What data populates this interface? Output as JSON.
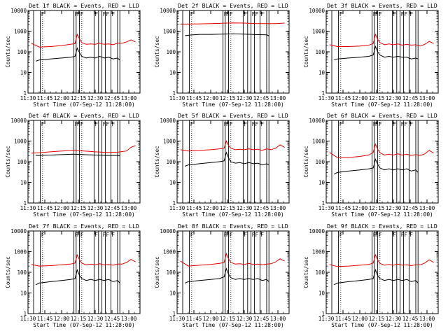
{
  "colors": {
    "events": "#000000",
    "lld": "#e60000",
    "background": "#ffffff"
  },
  "common": {
    "xlabel": "Start Time (07-Sep-12 11:28:00)",
    "ylabel": "Counts/sec",
    "x_tick_labels": [
      "11:30",
      "11:45",
      "12:00",
      "12:15",
      "12:30",
      "12:45",
      "13:00"
    ],
    "x_tick_minutes": [
      0,
      15,
      30,
      45,
      60,
      75,
      90
    ],
    "x_range_minutes": [
      0,
      100
    ],
    "y_tick_labels": [
      "1",
      "10",
      "100",
      "1000",
      "10000"
    ],
    "ylim": [
      1,
      10000
    ],
    "y_scale": "log",
    "marker_label": "F",
    "solid_markers_minutes": [
      5,
      11,
      41,
      43,
      46,
      59,
      63,
      66,
      69,
      74,
      80,
      82
    ],
    "f_markers_minutes": [
      11,
      41,
      43,
      46,
      59,
      66,
      69,
      74
    ],
    "dotted_markers_minutes": [
      13,
      48,
      80
    ]
  },
  "chart_data": [
    {
      "type": "line",
      "title": "Det 1f BLACK = Events, RED = LLD",
      "series": [
        {
          "color": "red",
          "x": [
            3,
            10,
            20,
            30,
            38,
            42,
            44,
            46,
            48,
            52,
            56,
            60,
            64,
            68,
            72,
            76,
            80,
            84,
            88,
            92,
            96
          ],
          "y": [
            260,
            170,
            180,
            200,
            230,
            250,
            700,
            420,
            280,
            230,
            240,
            230,
            260,
            230,
            240,
            220,
            260,
            260,
            300,
            380,
            300
          ]
        },
        {
          "color": "black",
          "x": [
            7,
            10,
            20,
            30,
            38,
            42,
            44,
            46,
            48,
            52,
            56,
            60,
            64,
            68,
            72,
            76,
            80,
            82
          ],
          "y": [
            35,
            40,
            45,
            50,
            55,
            60,
            150,
            90,
            60,
            50,
            55,
            50,
            60,
            50,
            55,
            45,
            50,
            40
          ]
        }
      ]
    },
    {
      "type": "line",
      "title": "Det 2f BLACK = Events, RED = LLD",
      "series": [
        {
          "color": "red",
          "x": [
            3,
            10,
            20,
            30,
            40,
            50,
            60,
            70,
            80,
            88,
            96
          ],
          "y": [
            2200,
            2200,
            2250,
            2300,
            2400,
            2500,
            2450,
            2350,
            2300,
            2300,
            2450
          ]
        },
        {
          "color": "black",
          "x": [
            7,
            12,
            20,
            30,
            40,
            50,
            60,
            70,
            80,
            82
          ],
          "y": [
            600,
            650,
            700,
            700,
            720,
            740,
            720,
            680,
            660,
            600
          ]
        }
      ]
    },
    {
      "type": "line",
      "title": "Det 3f BLACK = Events, RED = LLD",
      "series": [
        {
          "color": "red",
          "x": [
            3,
            10,
            20,
            30,
            38,
            42,
            44,
            46,
            48,
            52,
            56,
            60,
            64,
            68,
            72,
            76,
            80,
            84,
            88,
            92,
            96
          ],
          "y": [
            220,
            180,
            180,
            190,
            210,
            250,
            700,
            400,
            280,
            220,
            240,
            220,
            240,
            210,
            230,
            210,
            220,
            190,
            230,
            320,
            250
          ]
        },
        {
          "color": "black",
          "x": [
            7,
            10,
            20,
            30,
            38,
            42,
            44,
            46,
            48,
            52,
            56,
            60,
            64,
            68,
            72,
            76,
            80,
            82
          ],
          "y": [
            40,
            45,
            50,
            55,
            60,
            70,
            180,
            100,
            70,
            55,
            60,
            55,
            60,
            55,
            55,
            45,
            50,
            45
          ]
        }
      ]
    },
    {
      "type": "line",
      "title": "Det 4f BLACK = Events, RED = LLD",
      "series": [
        {
          "color": "red",
          "x": [
            3,
            10,
            20,
            30,
            40,
            50,
            60,
            70,
            80,
            88,
            92,
            96
          ],
          "y": [
            260,
            270,
            300,
            330,
            350,
            330,
            300,
            280,
            290,
            330,
            500,
            600
          ]
        },
        {
          "color": "black",
          "x": [
            7,
            10,
            20,
            30,
            40,
            50,
            60,
            70,
            80,
            82
          ],
          "y": [
            200,
            200,
            210,
            220,
            230,
            220,
            210,
            200,
            200,
            190
          ]
        }
      ]
    },
    {
      "type": "line",
      "title": "Det 5f BLACK = Events, RED = LLD",
      "series": [
        {
          "color": "red",
          "x": [
            3,
            10,
            20,
            30,
            38,
            42,
            44,
            46,
            48,
            52,
            56,
            60,
            64,
            68,
            72,
            76,
            80,
            84,
            88,
            92,
            96
          ],
          "y": [
            380,
            330,
            350,
            380,
            420,
            450,
            1000,
            600,
            450,
            380,
            400,
            380,
            420,
            380,
            400,
            350,
            420,
            380,
            450,
            650,
            500
          ]
        },
        {
          "color": "black",
          "x": [
            7,
            10,
            20,
            30,
            38,
            42,
            44,
            46,
            48,
            52,
            56,
            60,
            64,
            68,
            72,
            76,
            80,
            82
          ],
          "y": [
            60,
            70,
            80,
            90,
            100,
            110,
            280,
            150,
            100,
            85,
            90,
            80,
            90,
            80,
            85,
            70,
            80,
            70
          ]
        }
      ]
    },
    {
      "type": "line",
      "title": "Det 6f BLACK = Events, RED = LLD",
      "series": [
        {
          "color": "red",
          "x": [
            3,
            10,
            20,
            30,
            38,
            42,
            44,
            46,
            48,
            52,
            56,
            60,
            64,
            68,
            72,
            76,
            80,
            84,
            88,
            92,
            96
          ],
          "y": [
            280,
            160,
            160,
            180,
            210,
            280,
            700,
            400,
            270,
            210,
            230,
            210,
            240,
            210,
            230,
            200,
            220,
            200,
            240,
            350,
            260
          ]
        },
        {
          "color": "black",
          "x": [
            7,
            10,
            20,
            30,
            38,
            42,
            44,
            46,
            48,
            52,
            56,
            60,
            64,
            68,
            72,
            76,
            80,
            82
          ],
          "y": [
            25,
            30,
            35,
            40,
            45,
            50,
            130,
            75,
            50,
            40,
            45,
            40,
            45,
            40,
            45,
            35,
            40,
            30
          ]
        }
      ]
    },
    {
      "type": "line",
      "title": "Det 7f BLACK = Events, RED = LLD",
      "series": [
        {
          "color": "red",
          "x": [
            3,
            10,
            20,
            30,
            38,
            42,
            44,
            46,
            48,
            52,
            56,
            60,
            64,
            68,
            72,
            76,
            80,
            84,
            88,
            92,
            96
          ],
          "y": [
            240,
            200,
            210,
            230,
            250,
            280,
            700,
            400,
            280,
            230,
            250,
            230,
            260,
            230,
            240,
            220,
            250,
            250,
            300,
            420,
            320
          ]
        },
        {
          "color": "black",
          "x": [
            7,
            10,
            20,
            30,
            38,
            42,
            44,
            46,
            48,
            52,
            56,
            60,
            64,
            68,
            72,
            76,
            80,
            82
          ],
          "y": [
            25,
            30,
            35,
            40,
            45,
            50,
            130,
            70,
            50,
            40,
            45,
            40,
            45,
            40,
            45,
            35,
            40,
            30
          ]
        }
      ]
    },
    {
      "type": "line",
      "title": "Det 8f BLACK = Events, RED = LLD",
      "series": [
        {
          "color": "red",
          "x": [
            3,
            10,
            20,
            30,
            38,
            42,
            44,
            46,
            48,
            52,
            56,
            60,
            64,
            68,
            72,
            76,
            80,
            84,
            88,
            92,
            96
          ],
          "y": [
            350,
            200,
            220,
            240,
            270,
            300,
            800,
            450,
            300,
            250,
            260,
            240,
            270,
            240,
            250,
            230,
            250,
            260,
            320,
            450,
            350
          ]
        },
        {
          "color": "black",
          "x": [
            7,
            10,
            20,
            30,
            38,
            42,
            44,
            46,
            48,
            52,
            56,
            60,
            64,
            68,
            72,
            76,
            80,
            82
          ],
          "y": [
            30,
            35,
            40,
            45,
            50,
            60,
            150,
            80,
            55,
            45,
            50,
            45,
            50,
            45,
            50,
            40,
            45,
            35
          ]
        }
      ]
    },
    {
      "type": "line",
      "title": "Det 9f BLACK = Events, RED = LLD",
      "series": [
        {
          "color": "red",
          "x": [
            3,
            10,
            20,
            30,
            38,
            42,
            44,
            46,
            48,
            52,
            56,
            60,
            64,
            68,
            72,
            76,
            80,
            84,
            88,
            92,
            96
          ],
          "y": [
            240,
            190,
            200,
            220,
            240,
            280,
            700,
            400,
            270,
            220,
            240,
            220,
            250,
            220,
            230,
            210,
            230,
            230,
            280,
            400,
            300
          ]
        },
        {
          "color": "black",
          "x": [
            7,
            10,
            20,
            30,
            38,
            42,
            44,
            46,
            48,
            52,
            56,
            60,
            64,
            68,
            72,
            76,
            80,
            82
          ],
          "y": [
            25,
            30,
            35,
            40,
            45,
            50,
            130,
            70,
            50,
            40,
            45,
            40,
            45,
            40,
            45,
            35,
            40,
            30
          ]
        }
      ]
    }
  ]
}
